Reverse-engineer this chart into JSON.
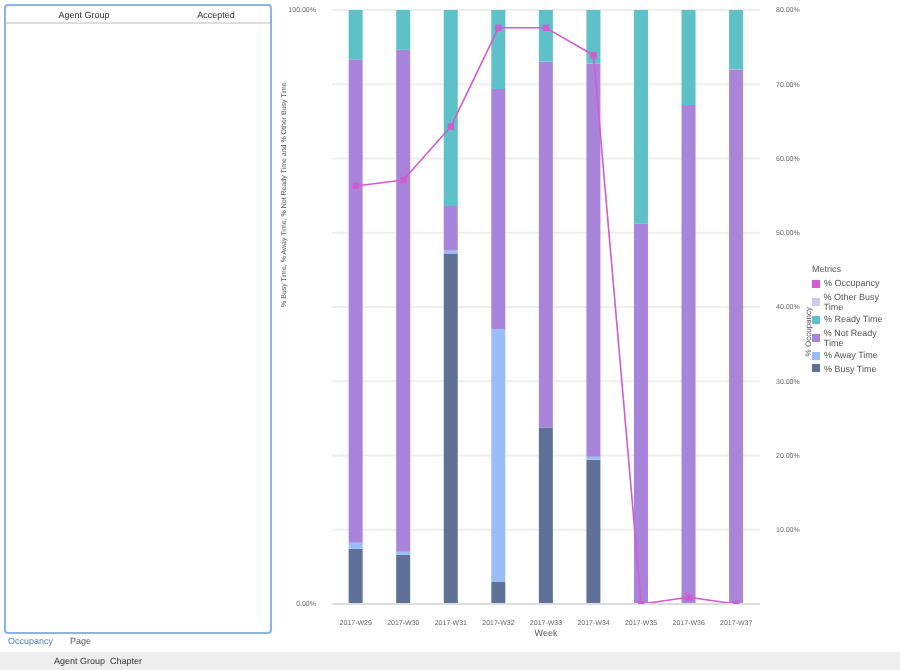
{
  "chart_data": {
    "type": "bar",
    "stacked": true,
    "xlabel": "Week",
    "ylabel": "% Busy Time, % Away Time, % Not Ready Time and % Other Busy Time",
    "y2label": "% Occupancy",
    "legend_title": "Metrics",
    "legend": "right",
    "grid": "y",
    "categories": [
      "2017-W29",
      "2017-W30",
      "2017-W31",
      "2017-W32",
      "2017-W33",
      "2017-W34",
      "2017-W35",
      "2017-W36",
      "2017-W37"
    ],
    "ylim": [
      0,
      100
    ],
    "yticks": [
      {
        "value": 0,
        "label": "0.00%"
      },
      {
        "value": 100,
        "label": "100.00%"
      }
    ],
    "y2lim": [
      0,
      80
    ],
    "y2ticks": [
      {
        "value": 10,
        "label": "10.00%"
      },
      {
        "value": 20,
        "label": "20.00%"
      },
      {
        "value": 30,
        "label": "30.00%"
      },
      {
        "value": 40,
        "label": "40.00%"
      },
      {
        "value": 50,
        "label": "50.00%"
      },
      {
        "value": 60,
        "label": "60.00%"
      },
      {
        "value": 70,
        "label": "70.00%"
      },
      {
        "value": 80,
        "label": "80.00%"
      }
    ],
    "series": [
      {
        "name": "% Busy Time",
        "color": "#5f7196",
        "values": [
          9.3,
          8.3,
          59,
          3.7,
          29.7,
          24.3,
          0,
          0,
          0
        ]
      },
      {
        "name": "% Away Time",
        "color": "#9bbdf7",
        "values": [
          1,
          0.5,
          0.5,
          42.6,
          0,
          0.5,
          0,
          0,
          0
        ]
      },
      {
        "name": "% Not Ready Time",
        "color": "#a885da",
        "values": [
          81.4,
          84.5,
          7.5,
          40.4,
          61.6,
          66.2,
          64,
          84,
          90
        ]
      },
      {
        "name": "% Ready Time",
        "color": "#5fc1c8",
        "values": [
          8.3,
          6.7,
          33,
          13.3,
          8.7,
          9,
          36,
          16,
          10
        ]
      },
      {
        "name": "% Other Busy Time",
        "color": "#d2c8ee",
        "values": [
          0,
          0,
          0,
          0,
          0,
          0,
          0,
          0,
          0
        ]
      },
      {
        "name": "% Occupancy",
        "type": "line",
        "axis": "y2",
        "color": "#d35bd0",
        "marker": "square",
        "values": [
          56.3,
          57.1,
          64.3,
          77.6,
          77.6,
          73.9,
          0,
          0.9,
          0
        ]
      }
    ],
    "annotations": [
      "Agent Group",
      "Accepted",
      "Occupancy",
      "Page",
      "Agent Group",
      "Chapter"
    ]
  }
}
